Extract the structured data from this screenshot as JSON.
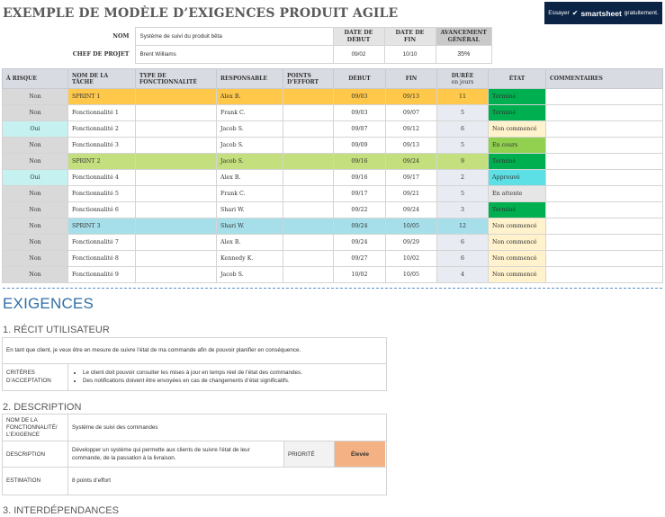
{
  "title": "EXEMPLE DE MODÈLE D’EXIGENCES PRODUIT AGILE",
  "banner": {
    "prefix": "Essayer",
    "brand": "smartsheet",
    "suffix": "gratuitement.",
    "bg": "#0b2345"
  },
  "info": {
    "nom_label": "NOM",
    "nom_value": "Système de suivi du produit bêta",
    "chef_label": "CHEF DE PROJET",
    "chef_value": "Brent Williams",
    "date_debut_label": "DATE DE DÉBUT",
    "date_debut_value": "09/02",
    "date_fin_label": "DATE DE FIN",
    "date_fin_value": "10/10",
    "avancement_label": "AVANCEMENT GÉNÉRAL",
    "avancement_value": "35%"
  },
  "columns": {
    "risque": "À RISQUE",
    "tache": "NOM DE LA TÂCHE",
    "type": "TYPE DE FONCTIONNALITÉ",
    "responsable": "RESPONSABLE",
    "points": "POINTS D’EFFORT",
    "debut": "DÉBUT",
    "fin": "FIN",
    "duree": "DURÉE",
    "duree_unit": "en jours",
    "etat": "ÉTAT",
    "commentaires": "COMMENTAIRES"
  },
  "rows": [
    {
      "risque": "Non",
      "tache": "SPRINT 1",
      "type": "",
      "responsable": "Alex B.",
      "points": "",
      "debut": "09/03",
      "fin": "09/13",
      "duree": "11",
      "etat": "Terminé",
      "commentaires": "",
      "kind": "sprint",
      "row_color": "#ffc84a",
      "risk_color": "#d9d9d9",
      "etat_color": "#00b050"
    },
    {
      "risque": "Non",
      "tache": "Fonctionnalité 1",
      "type": "",
      "responsable": "Frank C.",
      "points": "",
      "debut": "09/03",
      "fin": "09/07",
      "duree": "5",
      "etat": "Terminé",
      "commentaires": "",
      "kind": "feature",
      "risk_color": "#d9d9d9",
      "etat_color": "#00b050"
    },
    {
      "risque": "Oui",
      "tache": "Fonctionnalité 2",
      "type": "",
      "responsable": "Jacob S.",
      "points": "",
      "debut": "09/07",
      "fin": "09/12",
      "duree": "6",
      "etat": "Non commencé",
      "commentaires": "",
      "kind": "feature",
      "risk_color": "#c5f2f0",
      "etat_color": "#fff2cc"
    },
    {
      "risque": "Non",
      "tache": "Fonctionnalité 3",
      "type": "",
      "responsable": "Jacob S.",
      "points": "",
      "debut": "09/09",
      "fin": "09/13",
      "duree": "5",
      "etat": "En cours",
      "commentaires": "",
      "kind": "feature",
      "risk_color": "#d9d9d9",
      "etat_color": "#92d050"
    },
    {
      "risque": "Non",
      "tache": "SPRINT 2",
      "type": "",
      "responsable": "Jacob S.",
      "points": "",
      "debut": "09/16",
      "fin": "09/24",
      "duree": "9",
      "etat": "Terminé",
      "commentaires": "",
      "kind": "sprint",
      "row_color": "#c4df7e",
      "risk_color": "#d9d9d9",
      "etat_color": "#00b050"
    },
    {
      "risque": "Oui",
      "tache": "Fonctionnalité 4",
      "type": "",
      "responsable": "Alex B.",
      "points": "",
      "debut": "09/16",
      "fin": "09/17",
      "duree": "2",
      "etat": "Approuvé",
      "commentaires": "",
      "kind": "feature",
      "risk_color": "#c5f2f0",
      "etat_color": "#5ce0e6"
    },
    {
      "risque": "Non",
      "tache": "Fonctionnalité 5",
      "type": "",
      "responsable": "Frank C.",
      "points": "",
      "debut": "09/17",
      "fin": "09/21",
      "duree": "5",
      "etat": "En attente",
      "commentaires": "",
      "kind": "feature",
      "risk_color": "#d9d9d9",
      "etat_color": "#e7e6e6"
    },
    {
      "risque": "Non",
      "tache": "Fonctionnalité 6",
      "type": "",
      "responsable": "Shari W.",
      "points": "",
      "debut": "09/22",
      "fin": "09/24",
      "duree": "3",
      "etat": "Terminé",
      "commentaires": "",
      "kind": "feature",
      "risk_color": "#d9d9d9",
      "etat_color": "#00b050"
    },
    {
      "risque": "Non",
      "tache": "SPRINT 3",
      "type": "",
      "responsable": "Shari W.",
      "points": "",
      "debut": "09/24",
      "fin": "10/05",
      "duree": "12",
      "etat": "Non commencé",
      "commentaires": "",
      "kind": "sprint",
      "row_color": "#a6dfe9",
      "risk_color": "#d9d9d9",
      "etat_color": "#fff2cc"
    },
    {
      "risque": "Non",
      "tache": "Fonctionnalité 7",
      "type": "",
      "responsable": "Alex B.",
      "points": "",
      "debut": "09/24",
      "fin": "09/29",
      "duree": "6",
      "etat": "Non commencé",
      "commentaires": "",
      "kind": "feature",
      "risk_color": "#d9d9d9",
      "etat_color": "#fff2cc"
    },
    {
      "risque": "Non",
      "tache": "Fonctionnalité 8",
      "type": "",
      "responsable": "Kennedy K.",
      "points": "",
      "debut": "09/27",
      "fin": "10/02",
      "duree": "6",
      "etat": "Non commencé",
      "commentaires": "",
      "kind": "feature",
      "risk_color": "#d9d9d9",
      "etat_color": "#fff2cc"
    },
    {
      "risque": "Non",
      "tache": "Fonctionnalité 9",
      "type": "",
      "responsable": "Jacob S.",
      "points": "",
      "debut": "10/02",
      "fin": "10/05",
      "duree": "4",
      "etat": "Non commencé",
      "commentaires": "",
      "kind": "feature",
      "risk_color": "#d9d9d9",
      "etat_color": "#fff2cc"
    }
  ],
  "exigences": {
    "heading": "EXIGENCES",
    "recit_heading": "1. RÉCIT UTILISATEUR",
    "recit_text": "En tant que client, je veux être en mesure de suivre l’état de ma commande afin de pouvoir planifier en conséquence.",
    "criteres_label": "CRITÈRES D’ACCEPTATION",
    "criteres": [
      "Le client doit pouvoir consulter les mises à jour en temps réel de l’état des commandes.",
      "Des notifications doivent être envoyées en cas de changements d’état significatifs."
    ],
    "description_heading": "2. DESCRIPTION",
    "nom_label": "NOM DE LA FONCTIONNALITÉ/ L’EXIGENCE",
    "nom_value": "Système de suivi des commandes",
    "description_label": "DESCRIPTION",
    "description_value": "Développer un système qui permette aux clients de suivre l’état de leur commande, de la passation à la livraison.",
    "priorite_label": "PRIORITÉ",
    "priorite_value": "Élevée",
    "priorite_color": "#f4b183",
    "estimation_label": "ESTIMATION",
    "estimation_value": "8 points d’effort",
    "interdep_heading": "3. INTERDÉPENDANCES"
  }
}
